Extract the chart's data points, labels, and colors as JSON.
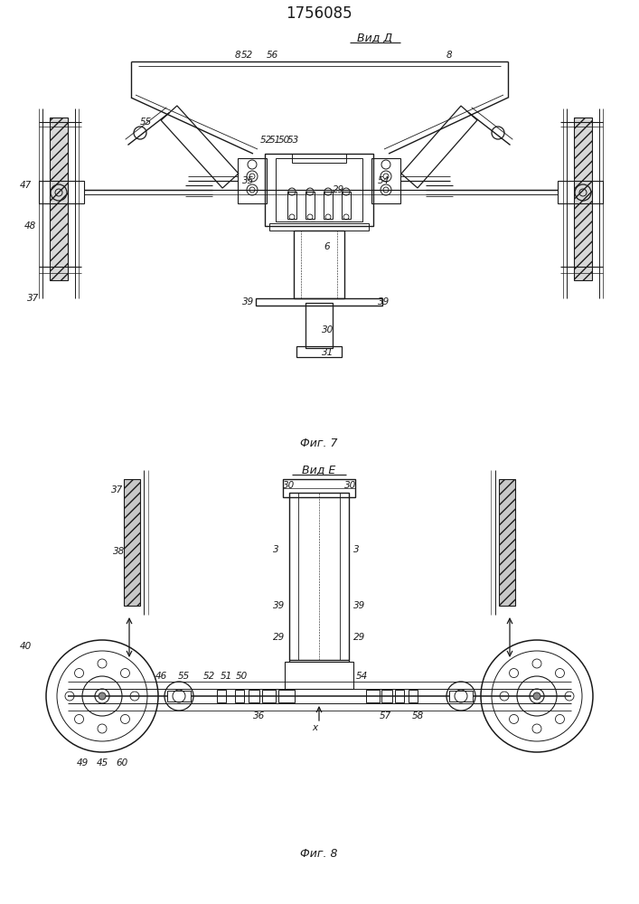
{
  "title": "1756085",
  "title_fontsize": 12,
  "fig7_label": "Вид Д",
  "fig8_label": "Вид Е",
  "fig7_caption": "Фиг. 7",
  "fig8_caption": "Фиг. 8",
  "line_color": "#1a1a1a",
  "label_fontsize": 7.5,
  "caption_fontsize": 9
}
